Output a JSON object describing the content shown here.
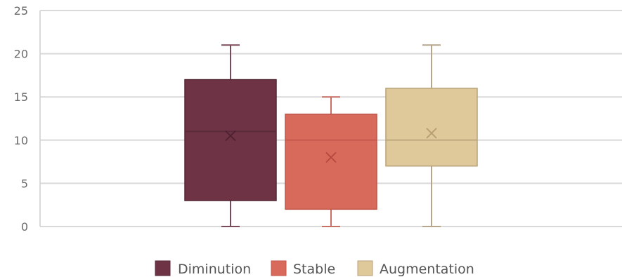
{
  "chart_data": {
    "type": "box",
    "title": "",
    "xlabel": "",
    "ylabel": "",
    "ylim": [
      0,
      25
    ],
    "yticks": [
      0,
      5,
      10,
      15,
      20,
      25
    ],
    "grid": true,
    "legend_position": "bottom",
    "series": [
      {
        "name": "Diminution",
        "color": "#6e3446",
        "min": 0,
        "q1": 3,
        "median": 11,
        "q3": 17,
        "max": 21,
        "mean": 10.5
      },
      {
        "name": "Stable",
        "color": "#d86a5c",
        "min": 0,
        "q1": 2,
        "median": 10,
        "q3": 13,
        "max": 15,
        "mean": 8
      },
      {
        "name": "Augmentation",
        "color": "#dfc899",
        "min": 0,
        "q1": 7,
        "median": 10,
        "q3": 16,
        "max": 21,
        "mean": 10.8
      }
    ]
  }
}
